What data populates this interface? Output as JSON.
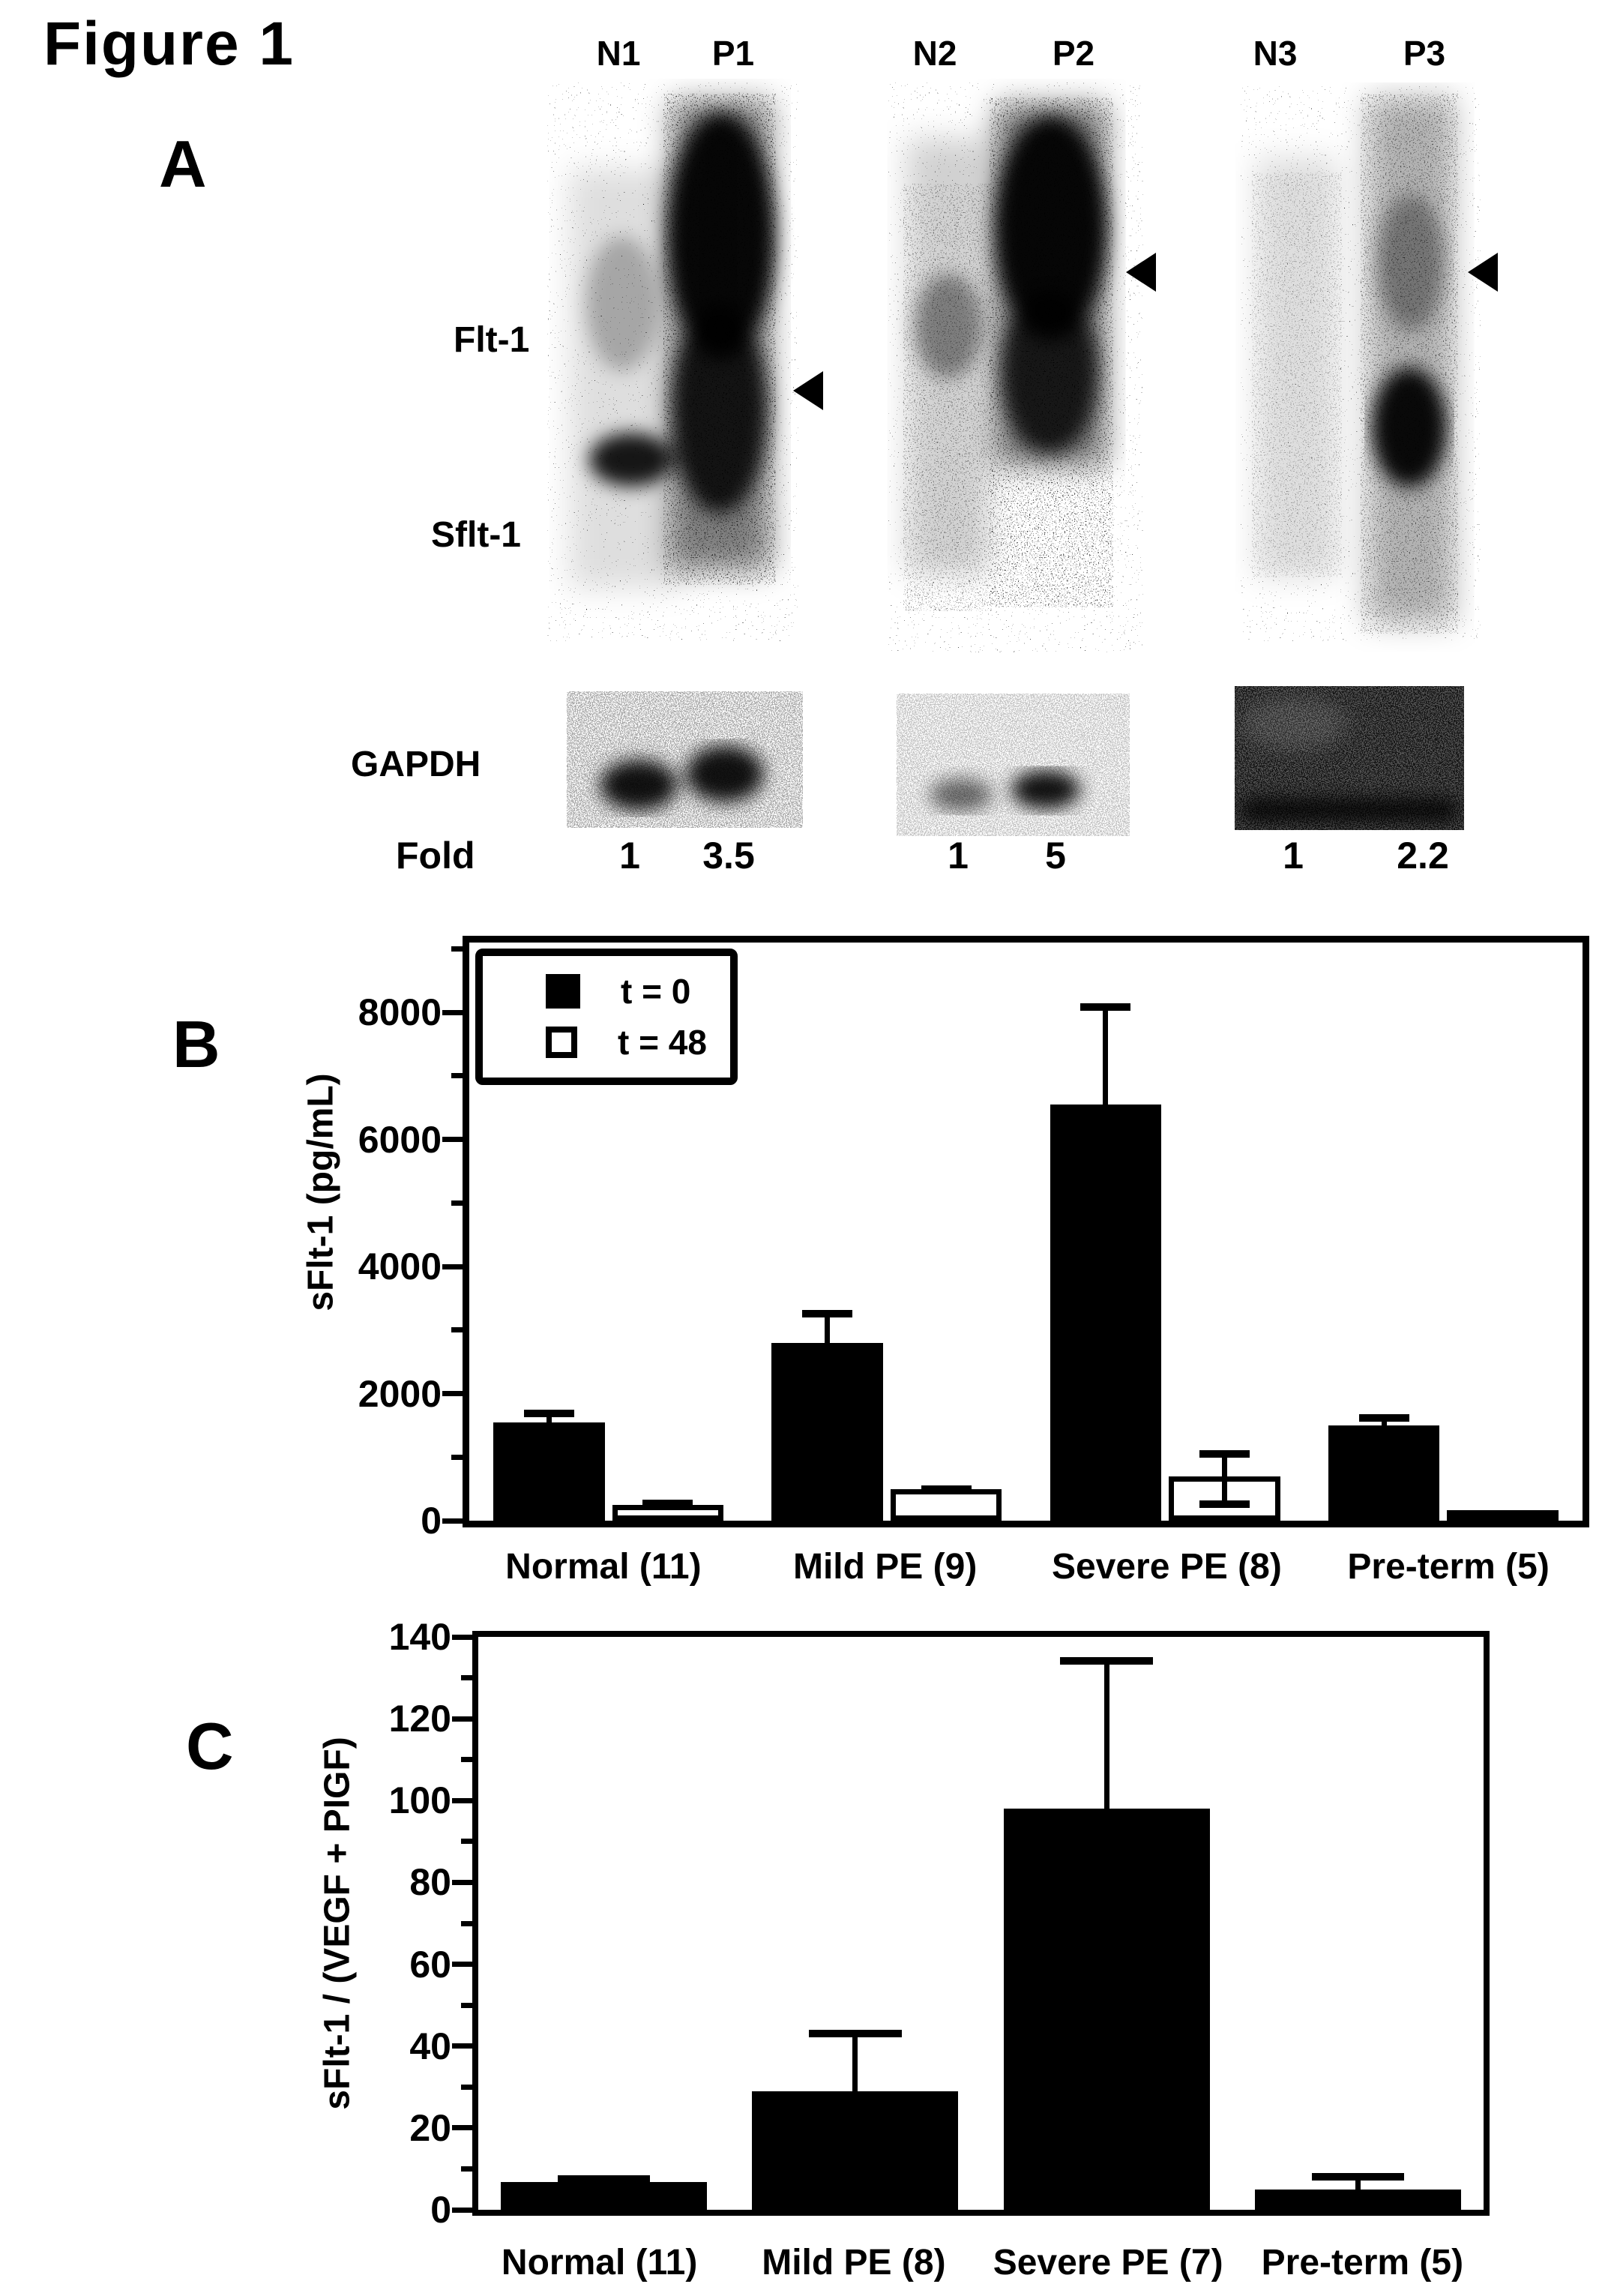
{
  "figure": {
    "title": "Figure 1"
  },
  "panel_a": {
    "label": "A",
    "lane_labels": [
      "N1",
      "P1",
      "N2",
      "P2",
      "N3",
      "P3"
    ],
    "flt1_label": "Flt-1",
    "sflt1_label": "Sflt-1",
    "gapdh_label": "GAPDH",
    "fold_label": "Fold",
    "fold_values": [
      "1",
      "3.5",
      "1",
      "5",
      "1",
      "2.2"
    ]
  },
  "panel_b": {
    "label": "B"
  },
  "panel_c": {
    "label": "C"
  },
  "chart_data": [
    {
      "id": "B",
      "type": "bar",
      "title": "",
      "ylabel": "sFlt-1 (pg/mL)",
      "xlabel": "",
      "ylim": [
        0,
        9100
      ],
      "yticks": [
        0,
        2000,
        4000,
        6000,
        8000
      ],
      "yminor": [
        1000,
        3000,
        5000,
        7000,
        9000
      ],
      "grid": false,
      "legend_position": "top-left",
      "categories": [
        "Normal (11)",
        "Mild PE (9)",
        "Severe PE (8)",
        "Pre-term (5)"
      ],
      "series": [
        {
          "name": "t = 0",
          "fill": "black",
          "values": [
            1550,
            2800,
            6550,
            1500
          ],
          "errors": [
            200,
            520,
            1600,
            180
          ],
          "errors_low": [
            0,
            0,
            0,
            0
          ]
        },
        {
          "name": "t = 48",
          "fill": "white",
          "values": [
            250,
            500,
            700,
            40
          ],
          "errors": [
            80,
            60,
            410,
            0
          ],
          "errors_low": [
            0,
            0,
            500,
            0
          ]
        }
      ],
      "bar_frac": 0.4,
      "pair_gap": 10
    },
    {
      "id": "C",
      "type": "bar",
      "title": "",
      "ylabel": "sFlt-1 / (VEGF + PIGF)",
      "xlabel": "",
      "ylim": [
        0,
        140
      ],
      "yticks": [
        0,
        20,
        40,
        60,
        80,
        100,
        120,
        140
      ],
      "yminor": [
        10,
        30,
        50,
        70,
        90,
        110,
        130
      ],
      "grid": false,
      "legend_position": "none",
      "categories": [
        "Normal (11)",
        "Mild PE (8)",
        "Severe PE (7)",
        "Pre-term (5)"
      ],
      "series": [
        {
          "name": "sFlt-1 / (VEGF + PIGF)",
          "fill": "black",
          "values": [
            6.8,
            29,
            98,
            5
          ],
          "errors": [
            1.6,
            15,
            37,
            4
          ],
          "errors_low": [
            0,
            0,
            0,
            0
          ]
        }
      ],
      "bar_frac": 0.82,
      "pair_gap": 0
    }
  ]
}
